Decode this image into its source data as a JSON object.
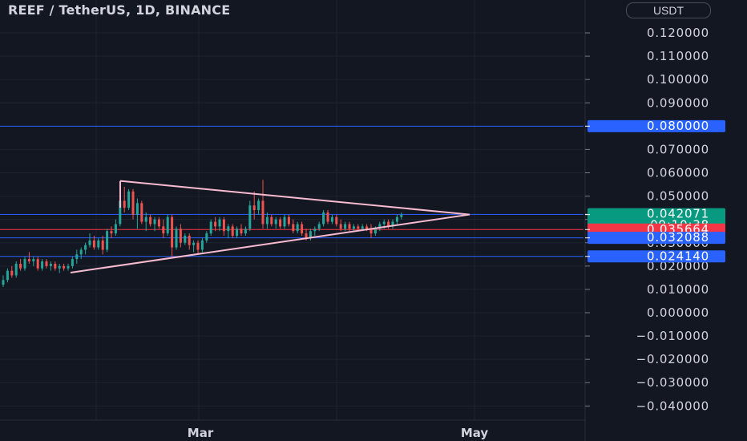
{
  "header": {
    "symbol_title": "REEF / TetherUS, 1D, BINANCE",
    "currency_label": "USDT"
  },
  "colors": {
    "background": "#131722",
    "grid": "#1f2331",
    "axis_text": "#d1d4dc",
    "up": "#26a69a",
    "down": "#ef5350",
    "blue_line": "#2962ff",
    "red_line": "#f23645",
    "triangle": "#f8bbd0"
  },
  "chart_data": {
    "type": "candlestick",
    "title": "REEF / TetherUS, 1D, BINANCE",
    "ylim": [
      -0.045,
      0.13
    ],
    "y_ticks": [
      "0.120000",
      "0.110000",
      "0.100000",
      "0.090000",
      "0.080000",
      "0.070000",
      "0.060000",
      "0.050000",
      "0.040000",
      "0.030000",
      "0.020000",
      "0.010000",
      "0.000000",
      "−0.010000",
      "−0.020000",
      "−0.030000",
      "−0.040000"
    ],
    "x_labels": [
      "Mar",
      "May"
    ],
    "horizontal_levels": [
      {
        "value": 0.08,
        "label": "0.080000",
        "color": "#2962ff"
      },
      {
        "value": 0.042176,
        "label": "0.042176",
        "color": "#2962ff"
      },
      {
        "value": 0.035664,
        "label": "0.035664",
        "color": "#f23645"
      },
      {
        "value": 0.032088,
        "label": "0.032088",
        "color": "#2962ff"
      },
      {
        "value": 0.02414,
        "label": "0.024140",
        "color": "#2962ff"
      }
    ],
    "last_price": {
      "value": 0.042071,
      "label": "0.042071",
      "countdown": "09:10:38",
      "color": "#089981"
    },
    "candles": [
      [
        0.012,
        0.016,
        0.011,
        0.014
      ],
      [
        0.014,
        0.019,
        0.013,
        0.018
      ],
      [
        0.018,
        0.02,
        0.015,
        0.016
      ],
      [
        0.016,
        0.022,
        0.015,
        0.021
      ],
      [
        0.021,
        0.023,
        0.018,
        0.019
      ],
      [
        0.019,
        0.024,
        0.018,
        0.023
      ],
      [
        0.023,
        0.026,
        0.021,
        0.022
      ],
      [
        0.022,
        0.024,
        0.02,
        0.023
      ],
      [
        0.023,
        0.024,
        0.018,
        0.019
      ],
      [
        0.019,
        0.023,
        0.018,
        0.022
      ],
      [
        0.022,
        0.023,
        0.019,
        0.02
      ],
      [
        0.02,
        0.022,
        0.018,
        0.021
      ],
      [
        0.021,
        0.022,
        0.018,
        0.019
      ],
      [
        0.019,
        0.021,
        0.017,
        0.02
      ],
      [
        0.02,
        0.021,
        0.018,
        0.019
      ],
      [
        0.019,
        0.021,
        0.018,
        0.02
      ],
      [
        0.02,
        0.024,
        0.019,
        0.023
      ],
      [
        0.023,
        0.027,
        0.021,
        0.025
      ],
      [
        0.025,
        0.028,
        0.023,
        0.027
      ],
      [
        0.027,
        0.03,
        0.025,
        0.029
      ],
      [
        0.029,
        0.034,
        0.028,
        0.031
      ],
      [
        0.031,
        0.033,
        0.027,
        0.028
      ],
      [
        0.028,
        0.032,
        0.027,
        0.031
      ],
      [
        0.031,
        0.033,
        0.025,
        0.027
      ],
      [
        0.027,
        0.036,
        0.026,
        0.035
      ],
      [
        0.035,
        0.037,
        0.032,
        0.034
      ],
      [
        0.034,
        0.04,
        0.033,
        0.038
      ],
      [
        0.038,
        0.052,
        0.037,
        0.048
      ],
      [
        0.048,
        0.054,
        0.043,
        0.045
      ],
      [
        0.045,
        0.053,
        0.044,
        0.052
      ],
      [
        0.052,
        0.053,
        0.04,
        0.042
      ],
      [
        0.042,
        0.049,
        0.036,
        0.047
      ],
      [
        0.047,
        0.048,
        0.038,
        0.039
      ],
      [
        0.039,
        0.043,
        0.035,
        0.041
      ],
      [
        0.041,
        0.042,
        0.037,
        0.038
      ],
      [
        0.038,
        0.041,
        0.035,
        0.04
      ],
      [
        0.04,
        0.041,
        0.036,
        0.037
      ],
      [
        0.037,
        0.04,
        0.032,
        0.034
      ],
      [
        0.034,
        0.042,
        0.033,
        0.041
      ],
      [
        0.041,
        0.042,
        0.024,
        0.028
      ],
      [
        0.028,
        0.037,
        0.027,
        0.036
      ],
      [
        0.036,
        0.038,
        0.028,
        0.03
      ],
      [
        0.03,
        0.034,
        0.029,
        0.033
      ],
      [
        0.033,
        0.034,
        0.027,
        0.029
      ],
      [
        0.029,
        0.031,
        0.026,
        0.03
      ],
      [
        0.03,
        0.031,
        0.025,
        0.027
      ],
      [
        0.027,
        0.032,
        0.026,
        0.031
      ],
      [
        0.031,
        0.035,
        0.03,
        0.034
      ],
      [
        0.034,
        0.04,
        0.033,
        0.039
      ],
      [
        0.039,
        0.041,
        0.035,
        0.037
      ],
      [
        0.037,
        0.041,
        0.035,
        0.04
      ],
      [
        0.04,
        0.041,
        0.033,
        0.035
      ],
      [
        0.035,
        0.038,
        0.032,
        0.037
      ],
      [
        0.037,
        0.038,
        0.032,
        0.033
      ],
      [
        0.033,
        0.037,
        0.032,
        0.036
      ],
      [
        0.036,
        0.038,
        0.033,
        0.034
      ],
      [
        0.034,
        0.037,
        0.033,
        0.036
      ],
      [
        0.036,
        0.048,
        0.035,
        0.046
      ],
      [
        0.046,
        0.052,
        0.04,
        0.044
      ],
      [
        0.044,
        0.049,
        0.042,
        0.048
      ],
      [
        0.048,
        0.057,
        0.036,
        0.038
      ],
      [
        0.038,
        0.043,
        0.036,
        0.041
      ],
      [
        0.041,
        0.042,
        0.037,
        0.038
      ],
      [
        0.038,
        0.041,
        0.036,
        0.04
      ],
      [
        0.04,
        0.041,
        0.036,
        0.037
      ],
      [
        0.037,
        0.042,
        0.036,
        0.041
      ],
      [
        0.041,
        0.042,
        0.037,
        0.038
      ],
      [
        0.038,
        0.04,
        0.034,
        0.035
      ],
      [
        0.035,
        0.039,
        0.034,
        0.038
      ],
      [
        0.038,
        0.039,
        0.033,
        0.034
      ],
      [
        0.034,
        0.036,
        0.031,
        0.032
      ],
      [
        0.032,
        0.036,
        0.031,
        0.035
      ],
      [
        0.035,
        0.037,
        0.033,
        0.036
      ],
      [
        0.036,
        0.039,
        0.035,
        0.038
      ],
      [
        0.038,
        0.044,
        0.037,
        0.043
      ],
      [
        0.043,
        0.044,
        0.038,
        0.039
      ],
      [
        0.039,
        0.042,
        0.038,
        0.041
      ],
      [
        0.041,
        0.042,
        0.037,
        0.038
      ],
      [
        0.038,
        0.04,
        0.035,
        0.036
      ],
      [
        0.036,
        0.039,
        0.035,
        0.038
      ],
      [
        0.038,
        0.039,
        0.035,
        0.036
      ],
      [
        0.036,
        0.038,
        0.035,
        0.037
      ],
      [
        0.037,
        0.038,
        0.035,
        0.036
      ],
      [
        0.036,
        0.038,
        0.035,
        0.037
      ],
      [
        0.037,
        0.038,
        0.035,
        0.036
      ],
      [
        0.036,
        0.038,
        0.032,
        0.034
      ],
      [
        0.034,
        0.037,
        0.033,
        0.036
      ],
      [
        0.036,
        0.039,
        0.035,
        0.038
      ],
      [
        0.038,
        0.04,
        0.036,
        0.039
      ],
      [
        0.039,
        0.04,
        0.036,
        0.037
      ],
      [
        0.037,
        0.04,
        0.036,
        0.039
      ],
      [
        0.039,
        0.042,
        0.038,
        0.041
      ],
      [
        0.041,
        0.043,
        0.04,
        0.042
      ]
    ],
    "triangle": {
      "upper_trendline": [
        [
          0.0565
        ],
        [
          0.0421
        ]
      ],
      "lower_trendline": [
        [
          0.0172
        ],
        [
          0.0421
        ]
      ]
    }
  }
}
